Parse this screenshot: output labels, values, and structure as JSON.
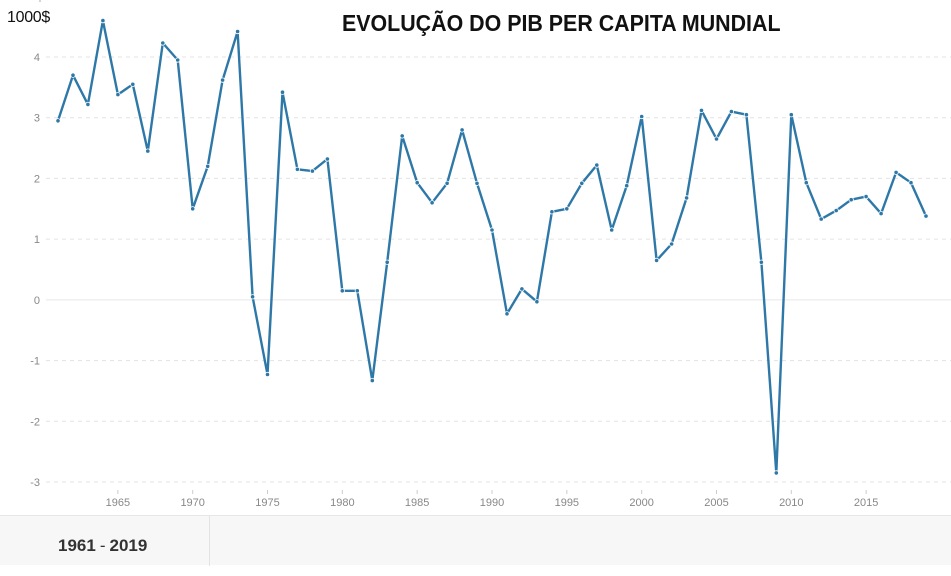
{
  "chart_data": {
    "type": "line",
    "title": "EVOLUÇÃO DO PIB PER CAPITA MUNDIAL",
    "unit_label": "1000$",
    "xlabel": "",
    "ylabel": "1000$",
    "xlim": [
      1961,
      2019
    ],
    "ylim": [
      -3,
      4
    ],
    "y_ticks": [
      "-3",
      "-2",
      "-1",
      "0",
      "1",
      "2",
      "3",
      "4"
    ],
    "x_ticks": [
      "1965",
      "1970",
      "1975",
      "1980",
      "1985",
      "1990",
      "1995",
      "2000",
      "2005",
      "2010",
      "2015"
    ],
    "grid": "horizontal dashed",
    "legend": "none",
    "line_color": "#2e78a8",
    "series": [
      {
        "name": "PIB per capita",
        "x": [
          1961,
          1962,
          1963,
          1964,
          1965,
          1966,
          1967,
          1968,
          1969,
          1970,
          1971,
          1972,
          1973,
          1974,
          1975,
          1976,
          1977,
          1978,
          1979,
          1980,
          1981,
          1982,
          1983,
          1984,
          1985,
          1986,
          1987,
          1988,
          1989,
          1990,
          1991,
          1992,
          1993,
          1994,
          1995,
          1996,
          1997,
          1998,
          1999,
          2000,
          2001,
          2002,
          2003,
          2004,
          2005,
          2006,
          2007,
          2008,
          2009,
          2010,
          2011,
          2012,
          2013,
          2014,
          2015,
          2016,
          2017,
          2018,
          2019
        ],
        "values": [
          2.95,
          3.7,
          3.22,
          4.6,
          3.38,
          3.55,
          2.45,
          4.23,
          3.95,
          1.5,
          2.2,
          3.62,
          4.42,
          0.05,
          -1.23,
          3.42,
          2.15,
          2.12,
          2.32,
          0.15,
          0.15,
          -1.33,
          0.62,
          2.7,
          1.93,
          1.6,
          1.92,
          2.8,
          1.92,
          1.15,
          -0.23,
          0.18,
          -0.03,
          1.45,
          1.5,
          1.92,
          2.22,
          1.15,
          1.88,
          3.02,
          0.65,
          0.92,
          1.68,
          3.12,
          2.65,
          3.1,
          3.05,
          0.62,
          -2.85,
          3.05,
          1.93,
          1.33,
          1.47,
          1.65,
          1.7,
          1.42,
          2.1,
          1.93,
          1.38
        ]
      }
    ]
  },
  "footer": {
    "range_start": "1961",
    "range_sep": "-",
    "range_end": "2019"
  }
}
